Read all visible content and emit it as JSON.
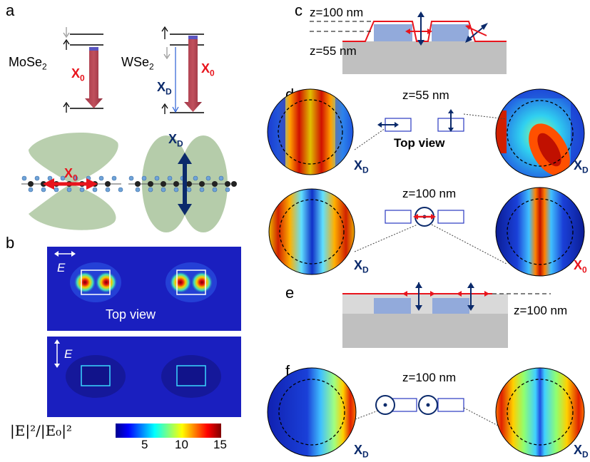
{
  "panels": {
    "a": "a",
    "b": "b",
    "c": "c",
    "d": "d",
    "e": "e",
    "f": "f"
  },
  "panel_a": {
    "material_left": "MoSe",
    "material_right": "WSe",
    "subscript": "2",
    "exciton_bright": "X",
    "exciton_dark": "X",
    "bright_sub": "0",
    "dark_sub": "D"
  },
  "panel_b": {
    "field_label": "E",
    "top_view_label": "Top view",
    "colorbar_label": "|E|²/|E₀|²",
    "colorbar_ticks": [
      "5",
      "10",
      "15"
    ]
  },
  "panel_c": {
    "z_top": "z=100 nm",
    "z_bottom": "z=55 nm"
  },
  "panel_d": {
    "z_top": "z=55 nm",
    "top_view_label": "Top view",
    "z_bottom": "z=100 nm"
  },
  "panel_e": {
    "z_label": "z=100 nm"
  },
  "panel_f": {
    "z_label": "z=100 nm"
  },
  "colors": {
    "bright": "#e8141c",
    "dark": "#0b2a6b",
    "lobe": "#b5ccaa",
    "substrate": "#c0c0c0",
    "cladding": "#d9d9d9",
    "pillar": "#92aadb",
    "map_bg": "#1a1fbf"
  }
}
